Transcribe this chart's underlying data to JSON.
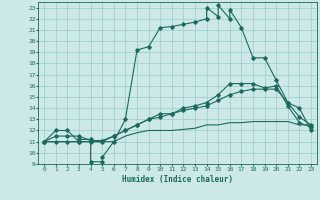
{
  "xlabel": "Humidex (Indice chaleur)",
  "bg_color": "#cce8e8",
  "grid_color": "#99cccc",
  "line_color": "#1a6b5e",
  "xlim": [
    -0.5,
    23.5
  ],
  "ylim": [
    9,
    23.5
  ],
  "xticks": [
    0,
    1,
    2,
    3,
    4,
    5,
    6,
    7,
    8,
    9,
    10,
    11,
    12,
    13,
    14,
    15,
    16,
    17,
    18,
    19,
    20,
    21,
    22,
    23
  ],
  "yticks": [
    9,
    10,
    11,
    12,
    13,
    14,
    15,
    16,
    17,
    18,
    19,
    20,
    21,
    22,
    23
  ],
  "line1_x": [
    0,
    1,
    2,
    3,
    3,
    4,
    4,
    5,
    5,
    6,
    7,
    8,
    9,
    10,
    11,
    12,
    13,
    14,
    14,
    15,
    15,
    16,
    16,
    17,
    18,
    19,
    20,
    21,
    22,
    23
  ],
  "line1_y": [
    11,
    12,
    12,
    11,
    11.2,
    11.2,
    9.2,
    9.2,
    9.6,
    11,
    13,
    19.2,
    19.5,
    21.2,
    21.3,
    21.5,
    21.7,
    22,
    23,
    22.2,
    23.2,
    22,
    22.8,
    21.2,
    18.5,
    18.5,
    16.5,
    14.5,
    14,
    12
  ],
  "line2_x": [
    0,
    1,
    2,
    3,
    4,
    5,
    6,
    7,
    8,
    9,
    10,
    11,
    12,
    13,
    14,
    15,
    16,
    17,
    18,
    19,
    20,
    21,
    22,
    23
  ],
  "line2_y": [
    11,
    11.5,
    11.5,
    11.5,
    11.1,
    11.1,
    11.5,
    12,
    12.5,
    13,
    13.2,
    13.5,
    13.8,
    14,
    14.2,
    14.7,
    15.2,
    15.5,
    15.7,
    15.7,
    15.7,
    14.5,
    13.2,
    12.5
  ],
  "line3_x": [
    0,
    1,
    2,
    3,
    4,
    5,
    6,
    7,
    8,
    9,
    10,
    11,
    12,
    13,
    14,
    15,
    16,
    17,
    18,
    19,
    20,
    21,
    22,
    23
  ],
  "line3_y": [
    11,
    11,
    11,
    11,
    11,
    11,
    11,
    11.5,
    11.8,
    12,
    12,
    12,
    12.1,
    12.2,
    12.5,
    12.5,
    12.7,
    12.7,
    12.8,
    12.8,
    12.8,
    12.8,
    12.5,
    12.5
  ],
  "line4_x": [
    0,
    1,
    2,
    3,
    4,
    5,
    6,
    7,
    8,
    9,
    10,
    11,
    12,
    13,
    14,
    15,
    16,
    17,
    18,
    19,
    20,
    21,
    22,
    23
  ],
  "line4_y": [
    11,
    11,
    11,
    11,
    11,
    11,
    11.5,
    12,
    12.5,
    13,
    13.5,
    13.5,
    14,
    14.2,
    14.5,
    15.2,
    16.2,
    16.2,
    16.2,
    15.8,
    16,
    14.2,
    12.7,
    12.3
  ]
}
